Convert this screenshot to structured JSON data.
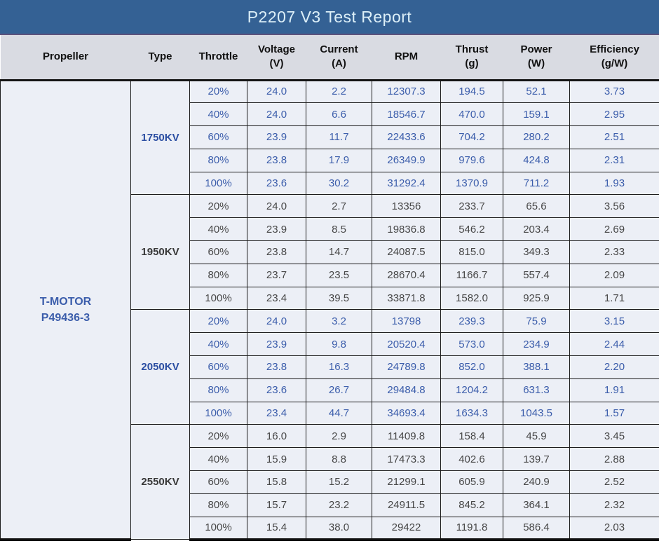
{
  "title": "P2207 V3 Test Report",
  "colors": {
    "title_bar_bg": "#346194",
    "title_text": "#DCEFF8",
    "header_bg": "#D9DBE2",
    "cell_bg": "#ECEFF6",
    "blue_text": "#3B5DAB",
    "dark_text": "#474747",
    "border": "#1c1c1c"
  },
  "table": {
    "columns": [
      {
        "label": "Propeller",
        "unit": ""
      },
      {
        "label": "Type",
        "unit": ""
      },
      {
        "label": "Throttle",
        "unit": ""
      },
      {
        "label": "Voltage",
        "unit": "(V)"
      },
      {
        "label": "Current",
        "unit": "(A)"
      },
      {
        "label": "RPM",
        "unit": ""
      },
      {
        "label": "Thrust",
        "unit": "(g)"
      },
      {
        "label": "Power",
        "unit": "(W)"
      },
      {
        "label": "Efficiency",
        "unit": "(g/W)"
      }
    ],
    "propeller_lines": [
      "T-MOTOR",
      "P49436-3"
    ],
    "groups": [
      {
        "type": "1750KV",
        "color": "blue",
        "rows": [
          {
            "throttle": "20%",
            "voltage": "24.0",
            "current": "2.2",
            "rpm": "12307.3",
            "thrust": "194.5",
            "power": "52.1",
            "efficiency": "3.73"
          },
          {
            "throttle": "40%",
            "voltage": "24.0",
            "current": "6.6",
            "rpm": "18546.7",
            "thrust": "470.0",
            "power": "159.1",
            "efficiency": "2.95"
          },
          {
            "throttle": "60%",
            "voltage": "23.9",
            "current": "11.7",
            "rpm": "22433.6",
            "thrust": "704.2",
            "power": "280.2",
            "efficiency": "2.51"
          },
          {
            "throttle": "80%",
            "voltage": "23.8",
            "current": "17.9",
            "rpm": "26349.9",
            "thrust": "979.6",
            "power": "424.8",
            "efficiency": "2.31"
          },
          {
            "throttle": "100%",
            "voltage": "23.6",
            "current": "30.2",
            "rpm": "31292.4",
            "thrust": "1370.9",
            "power": "711.2",
            "efficiency": "1.93"
          }
        ]
      },
      {
        "type": "1950KV",
        "color": "dark",
        "rows": [
          {
            "throttle": "20%",
            "voltage": "24.0",
            "current": "2.7",
            "rpm": "13356",
            "thrust": "233.7",
            "power": "65.6",
            "efficiency": "3.56"
          },
          {
            "throttle": "40%",
            "voltage": "23.9",
            "current": "8.5",
            "rpm": "19836.8",
            "thrust": "546.2",
            "power": "203.4",
            "efficiency": "2.69"
          },
          {
            "throttle": "60%",
            "voltage": "23.8",
            "current": "14.7",
            "rpm": "24087.5",
            "thrust": "815.0",
            "power": "349.3",
            "efficiency": "2.33"
          },
          {
            "throttle": "80%",
            "voltage": "23.7",
            "current": "23.5",
            "rpm": "28670.4",
            "thrust": "1166.7",
            "power": "557.4",
            "efficiency": "2.09"
          },
          {
            "throttle": "100%",
            "voltage": "23.4",
            "current": "39.5",
            "rpm": "33871.8",
            "thrust": "1582.0",
            "power": "925.9",
            "efficiency": "1.71"
          }
        ]
      },
      {
        "type": "2050KV",
        "color": "blue",
        "rows": [
          {
            "throttle": "20%",
            "voltage": "24.0",
            "current": "3.2",
            "rpm": "13798",
            "thrust": "239.3",
            "power": "75.9",
            "efficiency": "3.15"
          },
          {
            "throttle": "40%",
            "voltage": "23.9",
            "current": "9.8",
            "rpm": "20520.4",
            "thrust": "573.0",
            "power": "234.9",
            "efficiency": "2.44"
          },
          {
            "throttle": "60%",
            "voltage": "23.8",
            "current": "16.3",
            "rpm": "24789.8",
            "thrust": "852.0",
            "power": "388.1",
            "efficiency": "2.20"
          },
          {
            "throttle": "80%",
            "voltage": "23.6",
            "current": "26.7",
            "rpm": "29484.8",
            "thrust": "1204.2",
            "power": "631.3",
            "efficiency": "1.91"
          },
          {
            "throttle": "100%",
            "voltage": "23.4",
            "current": "44.7",
            "rpm": "34693.4",
            "thrust": "1634.3",
            "power": "1043.5",
            "efficiency": "1.57"
          }
        ]
      },
      {
        "type": "2550KV",
        "color": "dark",
        "rows": [
          {
            "throttle": "20%",
            "voltage": "16.0",
            "current": "2.9",
            "rpm": "11409.8",
            "thrust": "158.4",
            "power": "45.9",
            "efficiency": "3.45"
          },
          {
            "throttle": "40%",
            "voltage": "15.9",
            "current": "8.8",
            "rpm": "17473.3",
            "thrust": "402.6",
            "power": "139.7",
            "efficiency": "2.88"
          },
          {
            "throttle": "60%",
            "voltage": "15.8",
            "current": "15.2",
            "rpm": "21299.1",
            "thrust": "605.9",
            "power": "240.9",
            "efficiency": "2.52"
          },
          {
            "throttle": "80%",
            "voltage": "15.7",
            "current": "23.2",
            "rpm": "24911.5",
            "thrust": "845.2",
            "power": "364.1",
            "efficiency": "2.32"
          },
          {
            "throttle": "100%",
            "voltage": "15.4",
            "current": "38.0",
            "rpm": "29422",
            "thrust": "1191.8",
            "power": "586.4",
            "efficiency": "2.03"
          }
        ]
      }
    ]
  }
}
